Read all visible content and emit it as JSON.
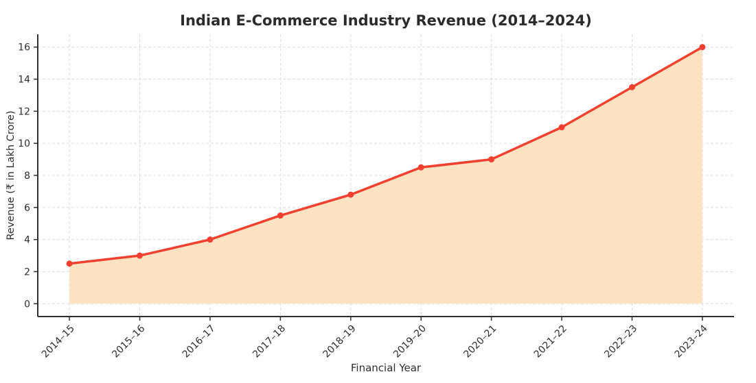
{
  "chart_data": {
    "type": "line",
    "title": "Indian E-Commerce Industry Revenue (2014–2024)",
    "xlabel": "Financial Year",
    "ylabel": "Revenue (₹ in Lakh Crore)",
    "categories": [
      "2014–15",
      "2015–16",
      "2016–17",
      "2017–18",
      "2018–19",
      "2019–20",
      "2020–21",
      "2021–22",
      "2022–23",
      "2023–24"
    ],
    "values": [
      2.5,
      3.0,
      4.0,
      5.5,
      6.8,
      8.5,
      9.0,
      11.0,
      13.5,
      16.0
    ],
    "series_name": "Revenue",
    "ylim": [
      0,
      16
    ],
    "yticks": [
      0,
      2,
      4,
      6,
      8,
      10,
      12,
      14,
      16
    ],
    "grid": true,
    "grid_style": "dashed",
    "legend": "none",
    "area_fill": true,
    "marker": "circle",
    "colors": {
      "line": "#F04030",
      "marker": "#F04030",
      "area": "#FDE3C2",
      "grid": "#DBDBDB",
      "spine": "#2F2F2F",
      "text": "#2E2E2E",
      "title": "#2B2B2B",
      "background": "#FFFFFF"
    }
  }
}
